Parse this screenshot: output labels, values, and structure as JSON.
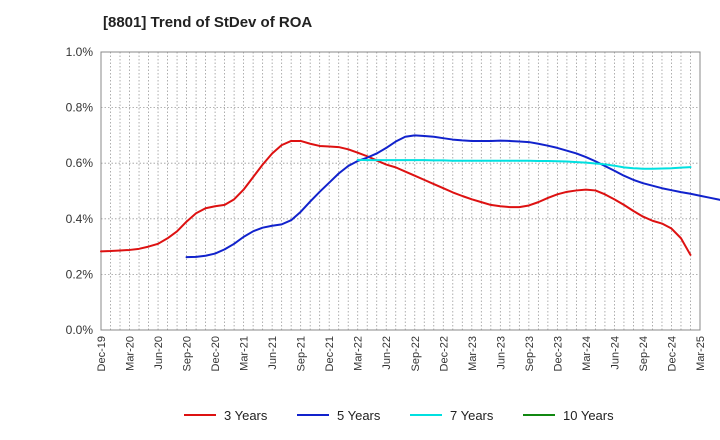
{
  "chart_data": {
    "type": "line",
    "title": "[8801]  Trend of StDev of ROA",
    "xlabel": "",
    "ylabel": "",
    "ylim": [
      0,
      1.0
    ],
    "y_ticks": [
      "0.0%",
      "0.2%",
      "0.4%",
      "0.6%",
      "0.8%",
      "1.0%"
    ],
    "y_tick_values": [
      0,
      0.2,
      0.4,
      0.6,
      0.8,
      1.0
    ],
    "x_ticks": [
      "Dec-19",
      "Mar-20",
      "Jun-20",
      "Sep-20",
      "Dec-20",
      "Mar-21",
      "Jun-21",
      "Sep-21",
      "Dec-21",
      "Mar-22",
      "Jun-22",
      "Sep-22",
      "Dec-22",
      "Mar-23",
      "Jun-23",
      "Sep-23",
      "Dec-23",
      "Mar-24",
      "Jun-24",
      "Sep-24",
      "Dec-24",
      "Mar-25"
    ],
    "grid": true,
    "legend_position": "bottom",
    "series": [
      {
        "name": "3 Years",
        "color": "#dd1111",
        "start_month": 0,
        "values": [
          0.283,
          0.284,
          0.286,
          0.288,
          0.292,
          0.3,
          0.31,
          0.33,
          0.355,
          0.39,
          0.42,
          0.438,
          0.445,
          0.45,
          0.47,
          0.505,
          0.55,
          0.595,
          0.635,
          0.665,
          0.68,
          0.68,
          0.67,
          0.662,
          0.66,
          0.658,
          0.65,
          0.638,
          0.625,
          0.61,
          0.595,
          0.585,
          0.57,
          0.555,
          0.54,
          0.525,
          0.51,
          0.495,
          0.482,
          0.47,
          0.46,
          0.45,
          0.445,
          0.442,
          0.442,
          0.448,
          0.46,
          0.475,
          0.488,
          0.497,
          0.502,
          0.505,
          0.502,
          0.488,
          0.47,
          0.45,
          0.428,
          0.408,
          0.393,
          0.383,
          0.365,
          0.33,
          0.27
        ]
      },
      {
        "name": "5 Years",
        "color": "#1122cc",
        "start_month": 9,
        "values": [
          0.262,
          0.263,
          0.267,
          0.275,
          0.29,
          0.31,
          0.335,
          0.355,
          0.368,
          0.375,
          0.38,
          0.395,
          0.425,
          0.462,
          0.497,
          0.53,
          0.563,
          0.59,
          0.608,
          0.62,
          0.635,
          0.655,
          0.678,
          0.695,
          0.7,
          0.698,
          0.695,
          0.69,
          0.685,
          0.682,
          0.68,
          0.68,
          0.68,
          0.681,
          0.68,
          0.678,
          0.676,
          0.67,
          0.663,
          0.655,
          0.645,
          0.635,
          0.622,
          0.607,
          0.59,
          0.573,
          0.555,
          0.54,
          0.528,
          0.519,
          0.51,
          0.503,
          0.496,
          0.49,
          0.483,
          0.476,
          0.469,
          0.461,
          0.454,
          0.447
        ]
      },
      {
        "name": "7 Years",
        "color": "#00e0e0",
        "start_month": 27,
        "values": [
          0.612,
          0.611,
          0.611,
          0.611,
          0.611,
          0.611,
          0.611,
          0.611,
          0.61,
          0.61,
          0.609,
          0.609,
          0.609,
          0.609,
          0.609,
          0.609,
          0.609,
          0.609,
          0.609,
          0.608,
          0.608,
          0.607,
          0.606,
          0.604,
          0.602,
          0.599,
          0.596,
          0.591,
          0.585,
          0.582,
          0.58,
          0.58,
          0.581,
          0.582,
          0.584,
          0.586
        ]
      },
      {
        "name": "10 Years",
        "color": "#118811",
        "start_month": 0,
        "values": []
      }
    ]
  }
}
